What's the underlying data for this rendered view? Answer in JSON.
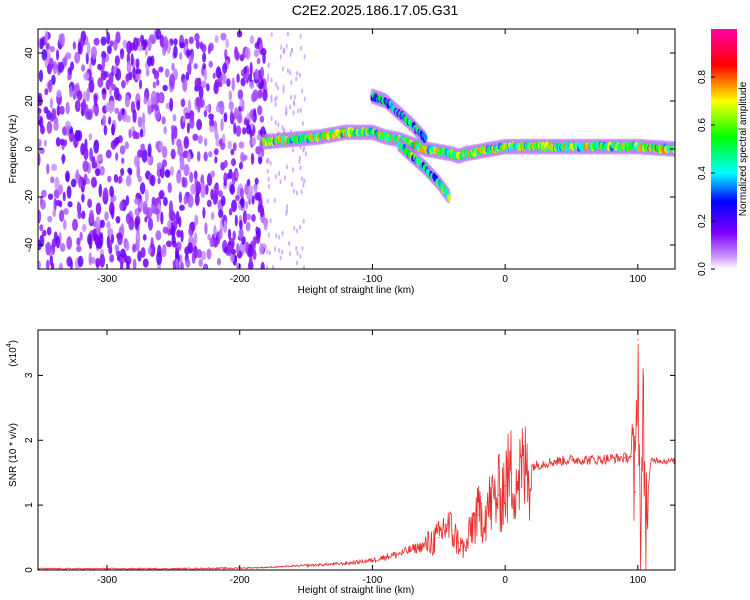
{
  "title": "C2E2.2025.186.17.05.G31",
  "chart_data": [
    {
      "type": "heatmap",
      "xlabel": "Height of straight line (km)",
      "ylabel": "Frequency (Hz)",
      "xlim": [
        -352,
        128
      ],
      "ylim": [
        -50,
        50
      ],
      "x_ticks": [
        -300,
        -200,
        -100,
        0,
        100
      ],
      "x_tick_labels": [
        "-300",
        "-200",
        "-100",
        "0",
        "100"
      ],
      "y_ticks": [
        -40,
        -20,
        0,
        20,
        40
      ],
      "y_tick_labels": [
        "-40",
        "-20",
        "0",
        "20",
        "40"
      ],
      "colorbar": {
        "label": "Normalized spectral amplitude",
        "range": [
          0,
          1
        ],
        "ticks": [
          0.0,
          0.2,
          0.4,
          0.6,
          0.8
        ],
        "tick_labels": [
          "0.0",
          "0.2",
          "0.4",
          "0.6",
          "0.8"
        ],
        "colors": [
          "#ffffff",
          "#cc99ff",
          "#7f00ff",
          "#0000ff",
          "#00ffff",
          "#00ff00",
          "#ffff00",
          "#ff0000",
          "#ff00aa"
        ]
      },
      "regions": [
        {
          "name": "noise",
          "x_range": [
            -352,
            -180
          ],
          "freq_range": [
            -50,
            48
          ],
          "amplitude": 0.12
        },
        {
          "name": "main-band",
          "x": [
            -182,
            -160,
            -140,
            -120,
            -100,
            -90,
            -80,
            -70,
            -60,
            -50,
            -40,
            -35,
            -30,
            -20,
            -10,
            0,
            20,
            40,
            60,
            80,
            100,
            128
          ],
          "freq": [
            3,
            4,
            5,
            7,
            7,
            5,
            4,
            2,
            0,
            -1,
            -2,
            -3,
            -2,
            -1,
            0,
            1,
            1,
            1,
            1,
            1,
            1,
            0
          ],
          "amplitude": 0.55
        },
        {
          "name": "upper-branch",
          "x": [
            -100,
            -90,
            -80,
            -70,
            -60
          ],
          "freq": [
            22,
            20,
            15,
            10,
            4
          ],
          "amplitude": 0.35
        },
        {
          "name": "lower-branch",
          "x": [
            -80,
            -70,
            -60,
            -50,
            -42
          ],
          "freq": [
            2,
            -3,
            -8,
            -14,
            -20
          ],
          "amplitude": 0.45
        }
      ]
    },
    {
      "type": "line",
      "xlabel": "Height of straight line (km)",
      "ylabel": "SNR (10 * v/v)",
      "y_scale_label": "(x10",
      "y_scale_exponent": "4",
      "y_scale_suffix": ")",
      "xlim": [
        -352,
        128
      ],
      "ylim": [
        0,
        3.7
      ],
      "x_ticks": [
        -300,
        -200,
        -100,
        0,
        100
      ],
      "x_tick_labels": [
        "-300",
        "-200",
        "-100",
        "0",
        "100"
      ],
      "y_ticks": [
        0,
        1,
        2,
        3
      ],
      "y_tick_labels": [
        "0",
        "1",
        "2",
        "3"
      ],
      "color": "#e83030",
      "series": [
        {
          "x": [
            -352,
            -300,
            -250,
            -200,
            -180,
            -160,
            -140,
            -120,
            -100,
            -90,
            -80,
            -70,
            -60,
            -50,
            -45,
            -40,
            -35,
            -30,
            -25,
            -20,
            -15,
            -10,
            -5,
            0,
            5,
            10,
            20,
            30,
            40,
            50,
            60,
            70,
            80,
            90,
            95,
            98,
            100,
            102,
            104,
            106,
            110,
            115,
            120,
            128
          ],
          "y": [
            0.02,
            0.02,
            0.02,
            0.03,
            0.04,
            0.06,
            0.08,
            0.1,
            0.15,
            0.2,
            0.25,
            0.32,
            0.38,
            0.5,
            0.7,
            0.6,
            0.42,
            0.3,
            0.7,
            0.85,
            0.9,
            1.05,
            1.15,
            1.3,
            1.5,
            1.45,
            1.6,
            1.65,
            1.68,
            1.7,
            1.7,
            1.7,
            1.72,
            1.73,
            1.75,
            1.2,
            3.55,
            0.2,
            2.5,
            0.8,
            1.7,
            1.7,
            1.68,
            1.68
          ]
        }
      ]
    }
  ]
}
